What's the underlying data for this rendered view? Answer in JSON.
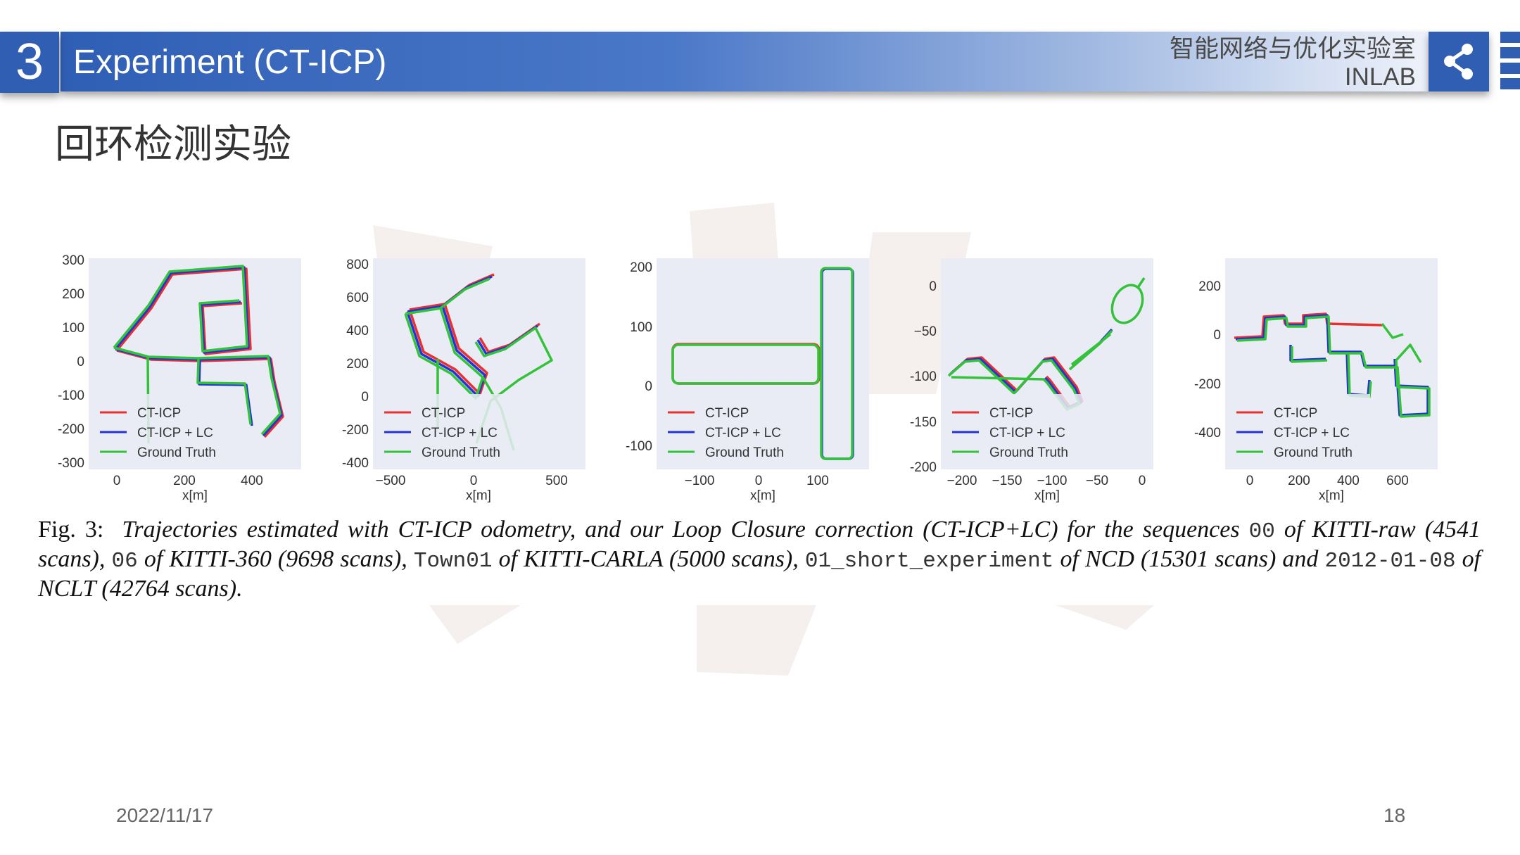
{
  "header": {
    "section_number": "3",
    "title": "Experiment (CT-ICP)",
    "lab_cn": "智能网络与优化实验室",
    "lab_en": "INLAB",
    "share_icon": "share-icon"
  },
  "slide_title": "回环检测实验",
  "legend": [
    "CT-ICP",
    "CT-ICP + LC",
    "Ground Truth"
  ],
  "colors": {
    "ct_icp": "#e8322f",
    "ct_icp_lc": "#2533d6",
    "ground_truth": "#33c23a",
    "plot_bg": "#e9ecf4",
    "accent": "#2f5eb3"
  },
  "chart_data": [
    {
      "type": "line",
      "xlabel": "x[m]",
      "xticks": [
        "0",
        "200",
        "400"
      ],
      "yticks": [
        "300",
        "200",
        "100",
        "0",
        "-100",
        "-200",
        "-300"
      ],
      "series": [
        {
          "name": "CT-ICP",
          "color": "#e8322f"
        },
        {
          "name": "CT-ICP + LC",
          "color": "#2533d6"
        },
        {
          "name": "Ground Truth",
          "color": "#33c23a"
        }
      ]
    },
    {
      "type": "line",
      "xlabel": "x[m]",
      "xticks": [
        "−500",
        "0",
        "500"
      ],
      "yticks": [
        "800",
        "600",
        "400",
        "200",
        "0",
        "-200",
        "-400"
      ],
      "series": [
        {
          "name": "CT-ICP",
          "color": "#e8322f"
        },
        {
          "name": "CT-ICP + LC",
          "color": "#2533d6"
        },
        {
          "name": "Ground Truth",
          "color": "#33c23a"
        }
      ]
    },
    {
      "type": "line",
      "xlabel": "x[m]",
      "xticks": [
        "−100",
        "0",
        "100"
      ],
      "yticks": [
        "200",
        "100",
        "0",
        "-100"
      ],
      "series": [
        {
          "name": "CT-ICP",
          "color": "#e8322f"
        },
        {
          "name": "CT-ICP + LC",
          "color": "#2533d6"
        },
        {
          "name": "Ground Truth",
          "color": "#33c23a"
        }
      ]
    },
    {
      "type": "line",
      "xlabel": "x[m]",
      "xticks": [
        "−200",
        "−150",
        "−100",
        "−50",
        "0"
      ],
      "yticks": [
        "0",
        "−50",
        "-100",
        "-150",
        "-200"
      ],
      "series": [
        {
          "name": "CT-ICP",
          "color": "#e8322f"
        },
        {
          "name": "CT-ICP + LC",
          "color": "#2533d6"
        },
        {
          "name": "Ground Truth",
          "color": "#33c23a"
        }
      ]
    },
    {
      "type": "line",
      "xlabel": "x[m]",
      "xticks": [
        "0",
        "200",
        "400",
        "600"
      ],
      "yticks": [
        "200",
        "0",
        "-200",
        "-400"
      ],
      "series": [
        {
          "name": "CT-ICP",
          "color": "#e8322f"
        },
        {
          "name": "CT-ICP + LC",
          "color": "#2533d6"
        },
        {
          "name": "Ground Truth",
          "color": "#33c23a"
        }
      ]
    }
  ],
  "caption": {
    "label": "Fig. 3:",
    "p1": "Trajectories estimated with CT-ICP odometry, and our Loop Closure correction (CT-ICP+LC) for the sequences",
    "c1": "00",
    "p2": "of KITTI-raw (4541 scans),",
    "c2": "06",
    "p3": "of KITTI-360 (9698 scans),",
    "c3": "Town01",
    "p4": "of KITTI-CARLA (5000 scans),",
    "c4": "01_short_experiment",
    "p5": "of NCD (15301 scans) and",
    "c5": "2012-01-08",
    "p6": "of NCLT (42764 scans)."
  },
  "footer": {
    "date": "2022/11/17",
    "page": "18"
  }
}
